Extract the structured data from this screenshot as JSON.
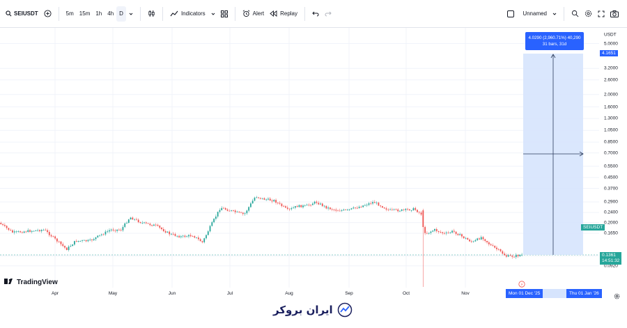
{
  "toolbar": {
    "symbol": "SEIUSDT",
    "intervals": [
      "5m",
      "15m",
      "1h",
      "4h",
      "D"
    ],
    "active_interval": "D",
    "indicators_label": "Indicators",
    "alert_label": "Alert",
    "replay_label": "Replay",
    "layout_name": "Unnamed"
  },
  "price_axis": {
    "currency": "USDT",
    "ticks": [
      "5.0000",
      "3.2000",
      "2.6000",
      "2.0000",
      "1.6000",
      "1.3000",
      "1.0500",
      "0.8500",
      "0.7000",
      "0.5500",
      "0.4500",
      "0.3700",
      "0.2900",
      "0.2400",
      "0.2000",
      "0.1650",
      "0.1100",
      "0.0920"
    ],
    "target_price": "4.1651",
    "last_price": "0.1361",
    "countdown": "14:51:32",
    "symbol_tag": "SEIUSDT"
  },
  "time_axis": {
    "months": [
      "Apr",
      "May",
      "Jun",
      "Jul",
      "Aug",
      "Sep",
      "Oct",
      "Nov"
    ],
    "range_start": "Mon 01 Dec '25",
    "range_end": "Thu 01 Jan '26"
  },
  "measure": {
    "line1": "4.0290 (2,960.71%) 40,290",
    "line2": "31 bars, 31d"
  },
  "branding": {
    "logo_text": "TradingView",
    "watermark": "ایران بروکر"
  },
  "colors": {
    "up": "#26a69a",
    "down": "#ef5350",
    "measure_fill": "#d6e4fd",
    "measure_accent": "#2962ff"
  }
}
